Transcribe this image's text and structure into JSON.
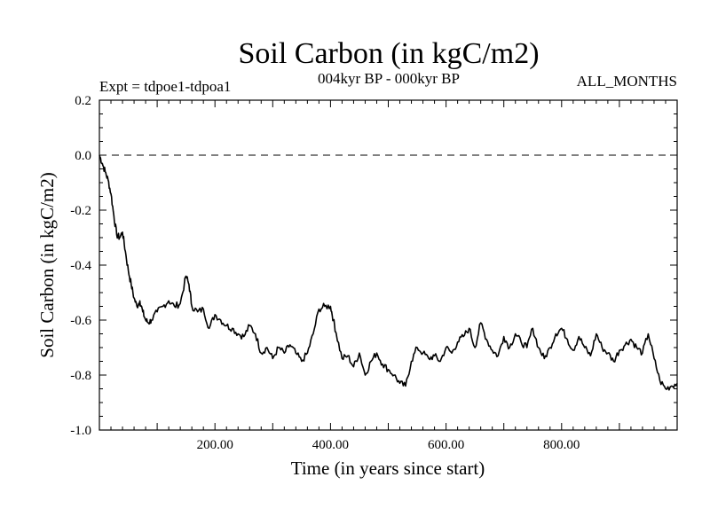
{
  "chart_data": {
    "type": "line",
    "title": "Soil Carbon (in kgC/m2)",
    "subtitle": "004kyr BP - 000kyr BP",
    "experiment": "Expt = tdpoe1-tdpoa1",
    "months": "ALL_MONTHS",
    "xlabel": "Time (in years since start)",
    "ylabel": "Soil Carbon (in kgC/m2)",
    "xlim": [
      0,
      1000
    ],
    "ylim": [
      -1.0,
      0.2
    ],
    "x_major_ticks": [
      200,
      400,
      600,
      800
    ],
    "x_tick_labels": [
      "200.00",
      "400.00",
      "600.00",
      "800.00"
    ],
    "y_major_ticks": [
      0.2,
      0.0,
      -0.2,
      -0.4,
      -0.6,
      -0.8,
      -1.0
    ],
    "y_tick_labels": [
      "0.2",
      "0.0",
      "-0.2",
      "-0.4",
      "-0.6",
      "-0.8",
      "-1.0"
    ],
    "reference_line": 0.0,
    "series": [
      {
        "name": "tdpoe1-tdpoa1",
        "color": "#000000",
        "x": [
          0,
          5,
          10,
          15,
          20,
          25,
          30,
          35,
          40,
          45,
          50,
          55,
          60,
          65,
          70,
          75,
          80,
          85,
          90,
          100,
          110,
          120,
          130,
          140,
          150,
          155,
          160,
          170,
          180,
          190,
          200,
          210,
          220,
          230,
          240,
          250,
          260,
          270,
          280,
          290,
          300,
          310,
          320,
          330,
          340,
          350,
          360,
          370,
          380,
          390,
          400,
          405,
          410,
          420,
          430,
          440,
          450,
          460,
          470,
          480,
          490,
          500,
          510,
          520,
          530,
          540,
          550,
          560,
          570,
          580,
          590,
          600,
          610,
          620,
          630,
          640,
          650,
          660,
          670,
          680,
          690,
          700,
          710,
          720,
          730,
          740,
          750,
          760,
          770,
          780,
          790,
          800,
          810,
          820,
          830,
          840,
          850,
          860,
          870,
          880,
          890,
          900,
          910,
          920,
          930,
          940,
          950,
          960,
          970,
          980,
          990,
          1000
        ],
        "y": [
          0.0,
          -0.03,
          -0.06,
          -0.09,
          -0.14,
          -0.22,
          -0.29,
          -0.3,
          -0.28,
          -0.35,
          -0.42,
          -0.47,
          -0.52,
          -0.55,
          -0.53,
          -0.57,
          -0.6,
          -0.61,
          -0.6,
          -0.57,
          -0.55,
          -0.53,
          -0.55,
          -0.54,
          -0.44,
          -0.47,
          -0.55,
          -0.57,
          -0.56,
          -0.63,
          -0.58,
          -0.6,
          -0.62,
          -0.63,
          -0.65,
          -0.66,
          -0.62,
          -0.65,
          -0.72,
          -0.7,
          -0.74,
          -0.7,
          -0.72,
          -0.69,
          -0.72,
          -0.75,
          -0.72,
          -0.65,
          -0.56,
          -0.55,
          -0.55,
          -0.6,
          -0.65,
          -0.74,
          -0.73,
          -0.77,
          -0.72,
          -0.8,
          -0.75,
          -0.72,
          -0.76,
          -0.78,
          -0.8,
          -0.83,
          -0.84,
          -0.75,
          -0.7,
          -0.72,
          -0.74,
          -0.73,
          -0.75,
          -0.7,
          -0.72,
          -0.68,
          -0.66,
          -0.63,
          -0.7,
          -0.61,
          -0.67,
          -0.71,
          -0.73,
          -0.66,
          -0.7,
          -0.65,
          -0.68,
          -0.7,
          -0.63,
          -0.7,
          -0.74,
          -0.7,
          -0.65,
          -0.63,
          -0.67,
          -0.71,
          -0.66,
          -0.7,
          -0.73,
          -0.65,
          -0.7,
          -0.72,
          -0.75,
          -0.71,
          -0.69,
          -0.67,
          -0.7,
          -0.72,
          -0.65,
          -0.74,
          -0.82,
          -0.85,
          -0.84,
          -0.83
        ]
      }
    ]
  }
}
